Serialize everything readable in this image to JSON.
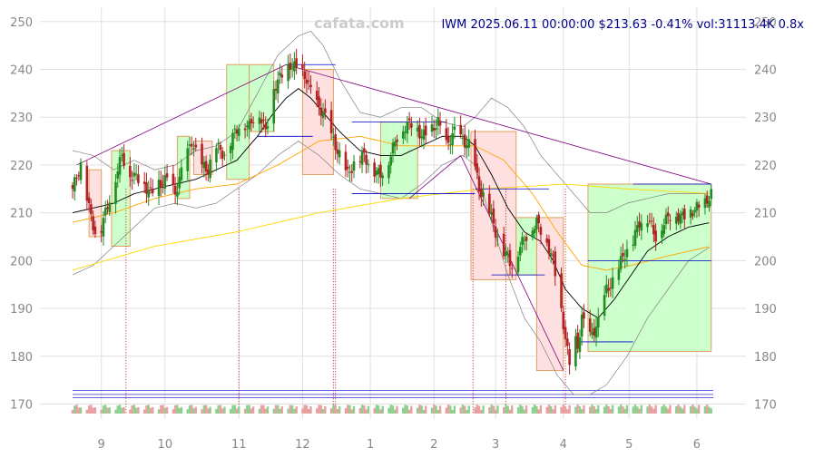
{
  "header": {
    "watermark": "cafata.com",
    "title": "IWM 2025.06.11 00:00:00 $213.63 -0.41% vol:31113.4K 0.8x"
  },
  "chart_data": {
    "type": "candlestick",
    "ylim": [
      168,
      253
    ],
    "grid": true,
    "y_ticks": [
      170,
      180,
      190,
      200,
      210,
      220,
      230,
      240,
      250
    ],
    "x_ticks": [
      "9",
      "10",
      "11",
      "12",
      "1",
      "2",
      "3",
      "4",
      "5",
      "6"
    ],
    "x_tick_days": [
      14,
      45,
      81,
      112,
      145,
      176,
      206,
      239,
      271,
      304
    ],
    "colors": {
      "up": "#228b22",
      "down": "#b22222",
      "sma20": "#000000",
      "sma50": "#ffa500",
      "sma200": "#ffd700",
      "band": "#808080",
      "trend": "#800080",
      "level": "#0000cd",
      "box_up": "#ccffcc",
      "box_down": "#ffe0e0"
    },
    "close_anchors": [
      [
        0,
        215
      ],
      [
        4,
        220
      ],
      [
        8,
        211
      ],
      [
        12,
        204
      ],
      [
        16,
        210
      ],
      [
        20,
        216
      ],
      [
        24,
        222
      ],
      [
        28,
        218
      ],
      [
        33,
        217
      ],
      [
        38,
        214
      ],
      [
        42,
        216
      ],
      [
        46,
        217
      ],
      [
        50,
        214
      ],
      [
        54,
        220
      ],
      [
        58,
        225
      ],
      [
        62,
        220
      ],
      [
        66,
        219
      ],
      [
        70,
        224
      ],
      [
        74,
        222
      ],
      [
        78,
        226
      ],
      [
        82,
        229
      ],
      [
        86,
        228
      ],
      [
        90,
        232
      ],
      [
        94,
        227
      ],
      [
        98,
        236
      ],
      [
        102,
        239
      ],
      [
        106,
        241
      ],
      [
        110,
        240
      ],
      [
        114,
        238
      ],
      [
        118,
        233
      ],
      [
        122,
        231
      ],
      [
        126,
        226
      ],
      [
        130,
        222
      ],
      [
        134,
        218
      ],
      [
        138,
        221
      ],
      [
        142,
        222
      ],
      [
        146,
        219
      ],
      [
        150,
        218
      ],
      [
        154,
        221
      ],
      [
        158,
        226
      ],
      [
        162,
        228
      ],
      [
        166,
        229
      ],
      [
        170,
        226
      ],
      [
        174,
        227
      ],
      [
        178,
        229
      ],
      [
        182,
        224
      ],
      [
        186,
        227
      ],
      [
        190,
        225
      ],
      [
        194,
        224
      ],
      [
        198,
        215
      ],
      [
        202,
        212
      ],
      [
        206,
        206
      ],
      [
        210,
        202
      ],
      [
        214,
        199
      ],
      [
        218,
        203
      ],
      [
        222,
        206
      ],
      [
        226,
        208
      ],
      [
        230,
        205
      ],
      [
        234,
        200
      ],
      [
        237,
        192
      ],
      [
        240,
        184
      ],
      [
        242,
        178
      ],
      [
        244,
        184
      ],
      [
        246,
        182
      ],
      [
        248,
        188
      ],
      [
        252,
        184
      ],
      [
        256,
        187
      ],
      [
        260,
        194
      ],
      [
        264,
        196
      ],
      [
        268,
        201
      ],
      [
        272,
        203
      ],
      [
        276,
        208
      ],
      [
        280,
        209
      ],
      [
        284,
        205
      ],
      [
        288,
        208
      ],
      [
        292,
        210
      ],
      [
        296,
        209
      ],
      [
        300,
        210
      ],
      [
        304,
        211
      ],
      [
        308,
        212
      ],
      [
        311,
        214
      ]
    ],
    "sma20_anchors": [
      [
        0,
        210
      ],
      [
        10,
        211
      ],
      [
        20,
        212
      ],
      [
        30,
        214
      ],
      [
        40,
        215
      ],
      [
        50,
        216
      ],
      [
        60,
        217
      ],
      [
        70,
        219
      ],
      [
        80,
        221
      ],
      [
        90,
        226
      ],
      [
        98,
        231
      ],
      [
        104,
        234
      ],
      [
        110,
        236
      ],
      [
        116,
        234
      ],
      [
        122,
        231
      ],
      [
        130,
        227
      ],
      [
        140,
        223
      ],
      [
        150,
        222
      ],
      [
        160,
        222
      ],
      [
        170,
        224
      ],
      [
        180,
        226
      ],
      [
        190,
        226
      ],
      [
        196,
        224
      ],
      [
        204,
        218
      ],
      [
        212,
        211
      ],
      [
        220,
        206
      ],
      [
        228,
        204
      ],
      [
        234,
        200
      ],
      [
        240,
        194
      ],
      [
        248,
        190
      ],
      [
        256,
        188
      ],
      [
        264,
        192
      ],
      [
        272,
        197
      ],
      [
        280,
        202
      ],
      [
        290,
        205
      ],
      [
        300,
        207
      ],
      [
        311,
        208
      ]
    ],
    "sma50_anchors": [
      [
        0,
        208
      ],
      [
        20,
        210
      ],
      [
        40,
        213
      ],
      [
        60,
        215
      ],
      [
        80,
        216
      ],
      [
        100,
        220
      ],
      [
        120,
        225
      ],
      [
        140,
        226
      ],
      [
        160,
        224
      ],
      [
        180,
        224
      ],
      [
        196,
        224
      ],
      [
        210,
        221
      ],
      [
        224,
        214
      ],
      [
        236,
        206
      ],
      [
        248,
        199
      ],
      [
        260,
        198
      ],
      [
        272,
        199
      ],
      [
        290,
        201
      ],
      [
        311,
        203
      ]
    ],
    "sma200_anchors": [
      [
        0,
        198
      ],
      [
        40,
        203
      ],
      [
        80,
        206
      ],
      [
        120,
        210
      ],
      [
        160,
        213
      ],
      [
        200,
        215
      ],
      [
        240,
        216
      ],
      [
        270,
        215
      ],
      [
        311,
        214
      ]
    ],
    "bb_upper_anchors": [
      [
        0,
        223
      ],
      [
        10,
        222
      ],
      [
        20,
        219
      ],
      [
        30,
        221
      ],
      [
        40,
        219
      ],
      [
        50,
        220
      ],
      [
        60,
        223
      ],
      [
        70,
        224
      ],
      [
        80,
        227
      ],
      [
        90,
        235
      ],
      [
        100,
        243
      ],
      [
        110,
        247
      ],
      [
        116,
        248
      ],
      [
        122,
        245
      ],
      [
        130,
        238
      ],
      [
        140,
        231
      ],
      [
        150,
        230
      ],
      [
        160,
        232
      ],
      [
        170,
        232
      ],
      [
        180,
        229
      ],
      [
        190,
        228
      ],
      [
        196,
        230
      ],
      [
        204,
        234
      ],
      [
        212,
        232
      ],
      [
        220,
        228
      ],
      [
        228,
        222
      ],
      [
        236,
        218
      ],
      [
        244,
        214
      ],
      [
        252,
        210
      ],
      [
        260,
        210
      ],
      [
        270,
        212
      ],
      [
        280,
        213
      ],
      [
        290,
        214
      ],
      [
        300,
        214
      ],
      [
        311,
        214
      ]
    ],
    "bb_lower_anchors": [
      [
        0,
        197
      ],
      [
        10,
        199
      ],
      [
        20,
        203
      ],
      [
        30,
        207
      ],
      [
        40,
        211
      ],
      [
        50,
        212
      ],
      [
        60,
        211
      ],
      [
        70,
        212
      ],
      [
        80,
        215
      ],
      [
        90,
        218
      ],
      [
        100,
        222
      ],
      [
        110,
        225
      ],
      [
        120,
        222
      ],
      [
        130,
        218
      ],
      [
        140,
        215
      ],
      [
        150,
        214
      ],
      [
        160,
        213
      ],
      [
        170,
        216
      ],
      [
        180,
        220
      ],
      [
        190,
        222
      ],
      [
        196,
        220
      ],
      [
        204,
        208
      ],
      [
        212,
        197
      ],
      [
        220,
        188
      ],
      [
        228,
        183
      ],
      [
        236,
        176
      ],
      [
        244,
        172
      ],
      [
        252,
        172
      ],
      [
        260,
        174
      ],
      [
        270,
        180
      ],
      [
        280,
        188
      ],
      [
        290,
        194
      ],
      [
        300,
        200
      ],
      [
        311,
        203
      ]
    ],
    "boxes": [
      {
        "x0": 8,
        "x1": 14,
        "top": 219,
        "bottom": 205,
        "kind": "down"
      },
      {
        "x0": 19,
        "x1": 28,
        "top": 223,
        "bottom": 203,
        "kind": "up"
      },
      {
        "x0": 51,
        "x1": 57,
        "top": 226,
        "bottom": 213,
        "kind": "up"
      },
      {
        "x0": 59,
        "x1": 68,
        "top": 225,
        "bottom": 218,
        "kind": "down"
      },
      {
        "x0": 75,
        "x1": 86,
        "top": 241,
        "bottom": 217,
        "kind": "up"
      },
      {
        "x0": 86,
        "x1": 98,
        "top": 241,
        "bottom": 227,
        "kind": "up"
      },
      {
        "x0": 112,
        "x1": 127,
        "top": 240,
        "bottom": 218,
        "kind": "down"
      },
      {
        "x0": 150,
        "x1": 168,
        "top": 229,
        "bottom": 213,
        "kind": "up"
      },
      {
        "x0": 194,
        "x1": 216,
        "top": 227,
        "bottom": 196,
        "kind": "down"
      },
      {
        "x0": 216,
        "x1": 226,
        "top": 209,
        "bottom": 197,
        "kind": "up"
      },
      {
        "x0": 226,
        "x1": 239,
        "top": 209,
        "bottom": 177,
        "kind": "down"
      },
      {
        "x0": 251,
        "x1": 311,
        "top": 216,
        "bottom": 181,
        "kind": "up"
      }
    ],
    "trend_lines": [
      {
        "from": [
          2,
          220
        ],
        "to": [
          104,
          241
        ]
      },
      {
        "from": [
          104,
          241
        ],
        "to": [
          311,
          216
        ]
      },
      {
        "from": [
          164,
          213
        ],
        "to": [
          189,
          222
        ]
      },
      {
        "from": [
          189,
          222
        ],
        "to": [
          239,
          177
        ]
      }
    ],
    "levels": [
      {
        "y": 226,
        "from": 90,
        "to": 117
      },
      {
        "y": 241,
        "from": 104,
        "to": 128
      },
      {
        "y": 229,
        "from": 136,
        "to": 182
      },
      {
        "y": 214,
        "from": 136,
        "to": 196
      },
      {
        "y": 215,
        "from": 196,
        "to": 232
      },
      {
        "y": 197,
        "from": 204,
        "to": 230
      },
      {
        "y": 183,
        "from": 246,
        "to": 273
      },
      {
        "y": 200,
        "from": 251,
        "to": 311
      },
      {
        "y": 216,
        "from": 273,
        "to": 311
      }
    ],
    "event_days": [
      26,
      81,
      127,
      128,
      195,
      211,
      240
    ]
  }
}
